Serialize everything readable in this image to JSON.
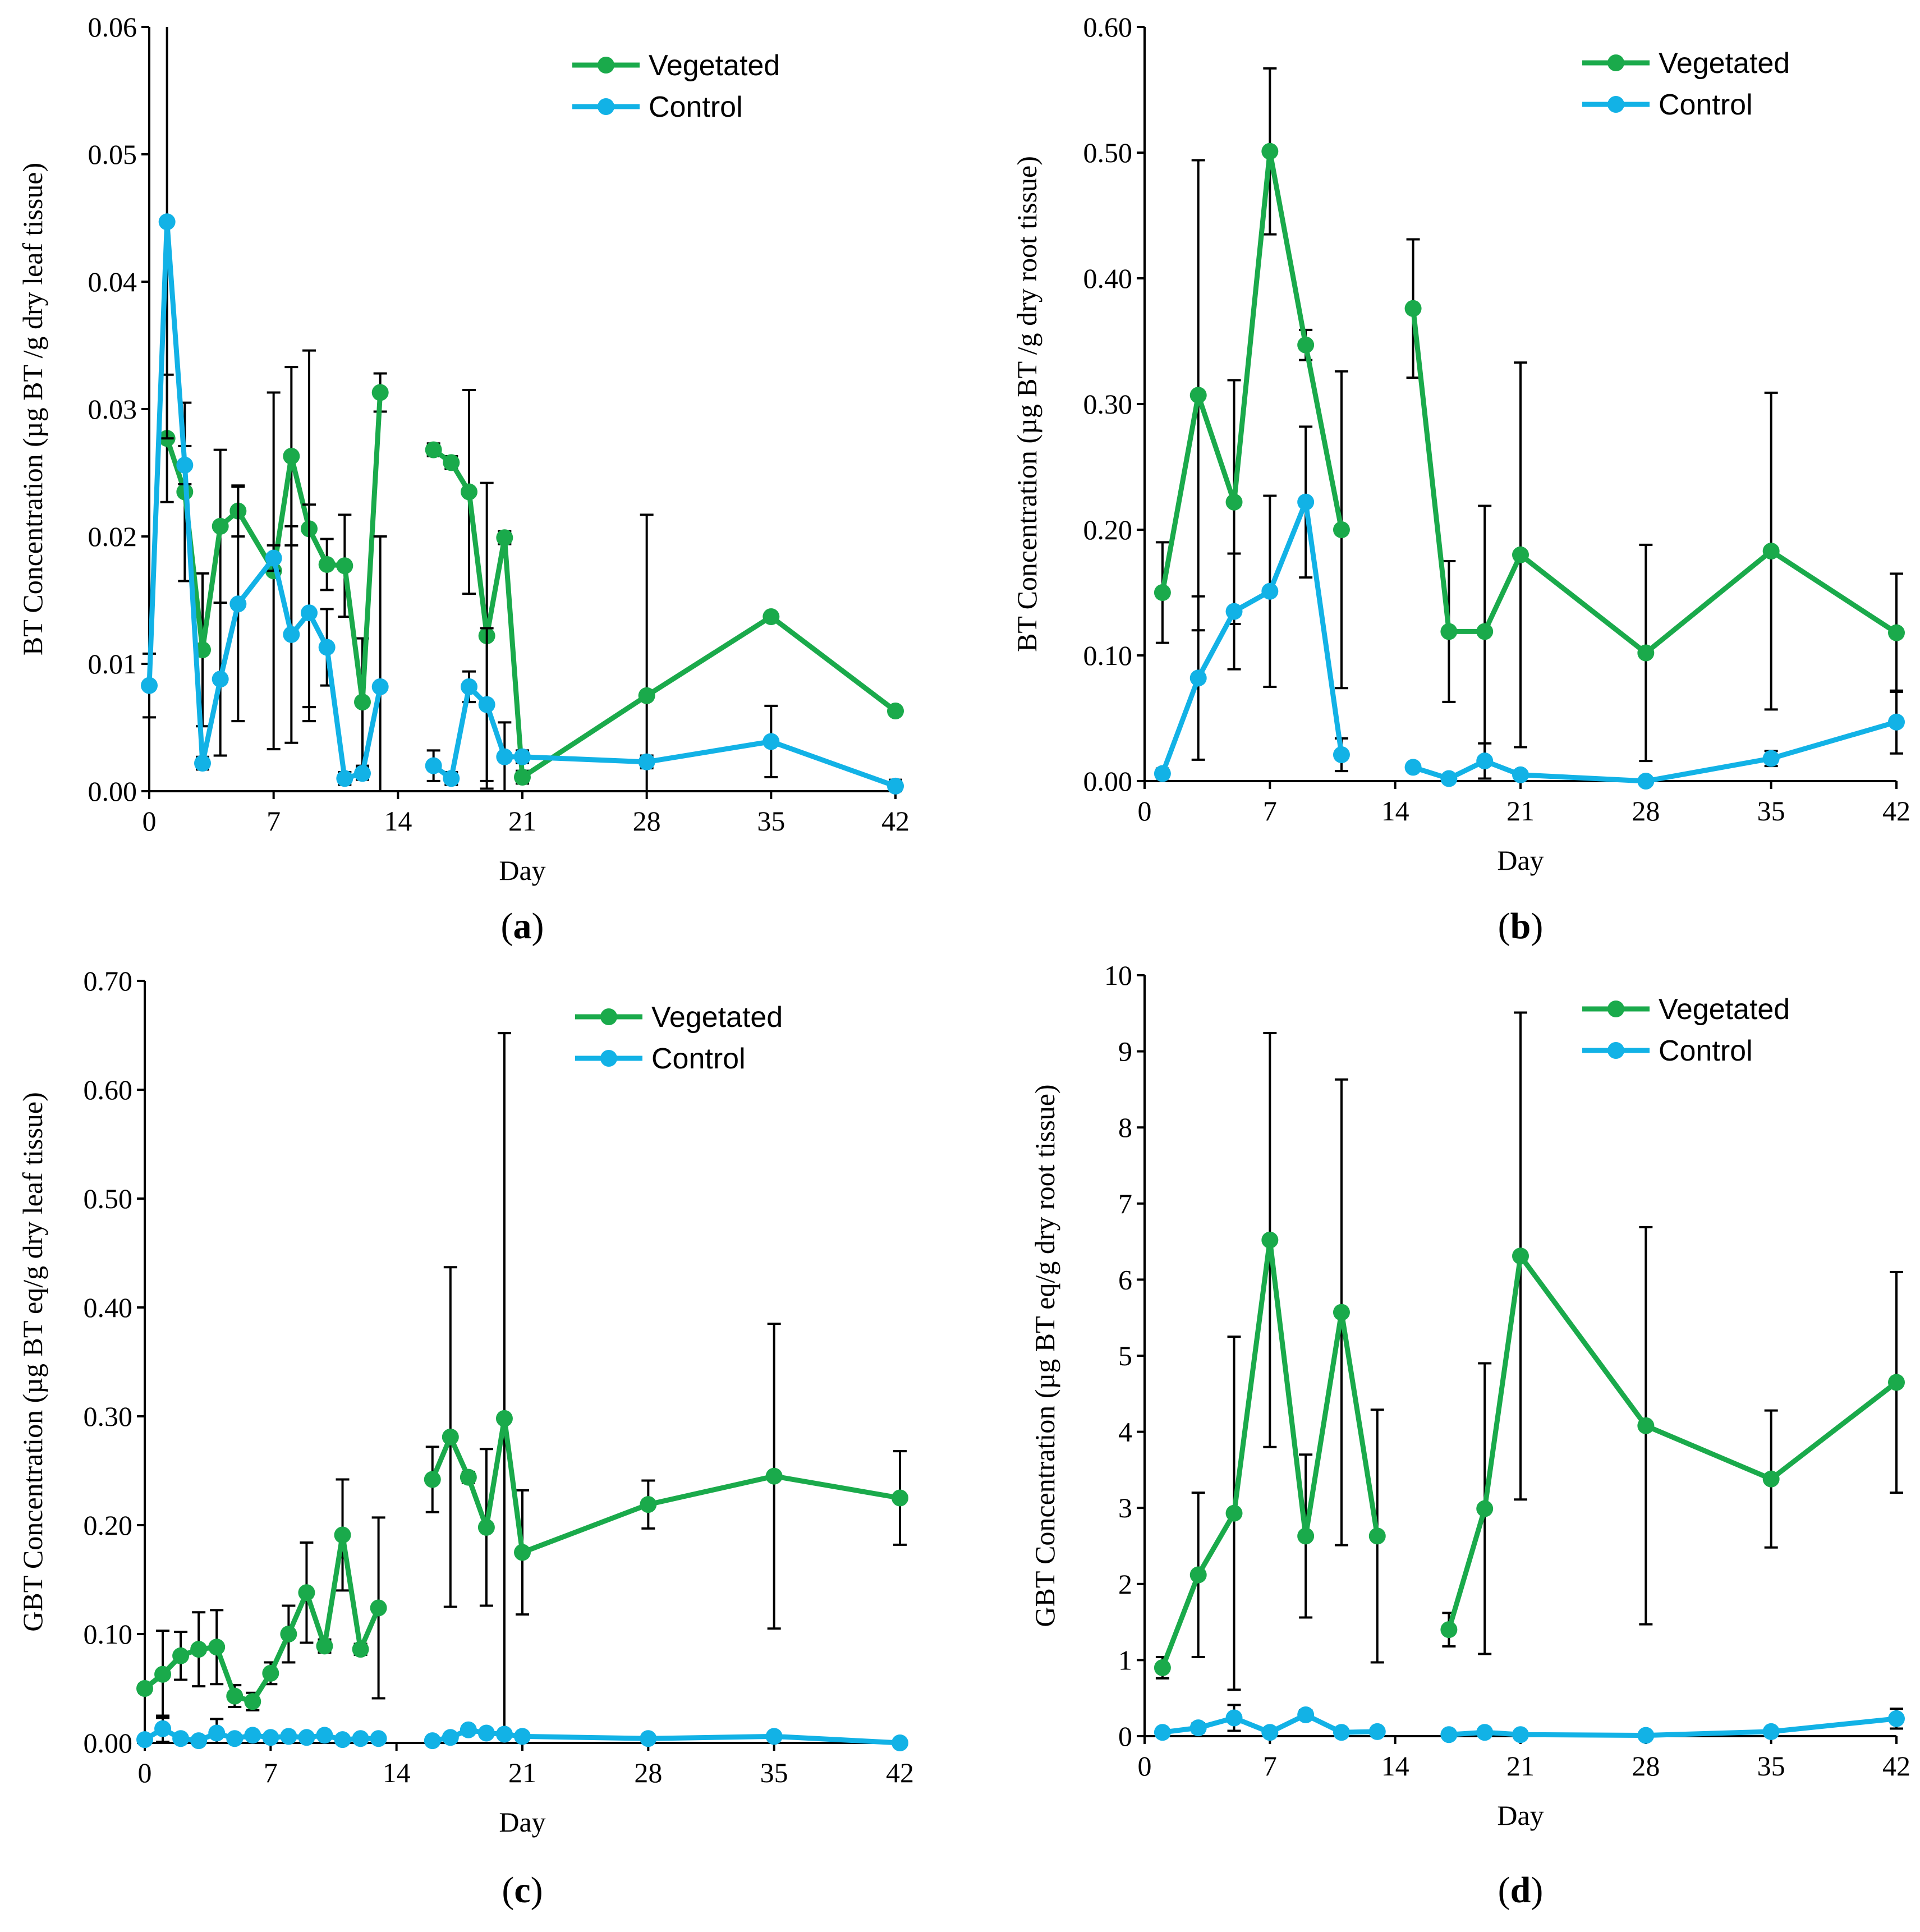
{
  "colors": {
    "vegetated": "#1aaa4b",
    "control": "#12b2e6",
    "axis": "#000000"
  },
  "chart_data": [
    {
      "id": "a",
      "type": "line",
      "panel_label": "a",
      "xlabel": "Day",
      "ylabel": "BT Concentration (µg BT /g dry leaf tissue)",
      "xlim": [
        0,
        42
      ],
      "ylim": [
        0,
        0.06
      ],
      "xticks": [
        0,
        7,
        14,
        21,
        28,
        35,
        42
      ],
      "xtick_labels": [
        "0",
        "7",
        "14",
        "21",
        "28",
        "35",
        "42"
      ],
      "yticks": [
        0,
        0.01,
        0.02,
        0.03,
        0.04,
        0.05,
        0.06
      ],
      "ytick_labels": [
        "0.00",
        "0.01",
        "0.02",
        "0.03",
        "0.04",
        "0.05",
        "0.06"
      ],
      "legend": [
        "Vegetated",
        "Control"
      ],
      "legend_position": "top-right",
      "series": [
        {
          "name": "Vegetated",
          "segments": [
            [
              [
                1,
                0.0277,
                0.005
              ],
              [
                2,
                0.0235,
                0.007
              ],
              [
                3,
                0.0111,
                0.006
              ],
              [
                4,
                0.0208,
                0.006
              ],
              [
                5,
                0.022,
                0.002
              ],
              [
                7,
                0.0173,
                0.014
              ],
              [
                8,
                0.0263,
                0.007
              ],
              [
                9,
                0.0206,
                0.014
              ],
              [
                10,
                0.0178,
                0.002
              ],
              [
                11,
                0.0177,
                0.004
              ],
              [
                12,
                0.007,
                0.005
              ],
              [
                13,
                0.0313,
                0.0015
              ]
            ],
            [
              [
                16,
                0.0268,
                0.0005
              ],
              [
                17,
                0.0258,
                0.0005
              ],
              [
                18,
                0.0235,
                0.008
              ],
              [
                19,
                0.0122,
                0.012
              ],
              [
                20,
                0.0199,
                0.0005
              ],
              [
                21,
                0.0011,
                0.0005
              ],
              [
                28,
                0.0075,
                0.0142
              ],
              [
                35,
                0.0137,
                0.0003
              ],
              [
                42,
                0.0063,
                0.0003
              ]
            ]
          ]
        },
        {
          "name": "Control",
          "segments": [
            [
              [
                0,
                0.0083,
                0.0025
              ],
              [
                1,
                0.0447,
                0.017
              ],
              [
                2,
                0.0256,
                0.0015
              ],
              [
                3,
                0.0022,
                0.0005
              ],
              [
                4,
                0.0088,
                0.006
              ],
              [
                5,
                0.0147,
                0.0092
              ],
              [
                7,
                0.0183,
                0.001
              ],
              [
                8,
                0.0123,
                0.0085
              ],
              [
                9,
                0.014,
                0.0085
              ],
              [
                10,
                0.0113,
                0.003
              ],
              [
                11,
                0.001,
                0.0005
              ],
              [
                12,
                0.0014,
                0.0005
              ],
              [
                13,
                0.0082,
                0.0118
              ]
            ],
            [
              [
                16,
                0.002,
                0.0012
              ],
              [
                17,
                0.001,
                0.0005
              ],
              [
                18,
                0.0082,
                0.0012
              ],
              [
                19,
                0.0068,
                0.006
              ],
              [
                20,
                0.0027,
                0.0027
              ],
              [
                21,
                0.0027,
                0.0005
              ],
              [
                28,
                0.0023,
                0.0005
              ],
              [
                35,
                0.0039,
                0.0028
              ],
              [
                42,
                0.0004,
                0.0005
              ]
            ]
          ]
        }
      ]
    },
    {
      "id": "b",
      "type": "line",
      "panel_label": "b",
      "xlabel": "Day",
      "ylabel": "BT Concentration (µg BT /g dry root tissue)",
      "xlim": [
        0,
        42
      ],
      "ylim": [
        0,
        0.6
      ],
      "xticks": [
        0,
        7,
        14,
        21,
        28,
        35,
        42
      ],
      "xtick_labels": [
        "0",
        "7",
        "14",
        "21",
        "28",
        "35",
        "42"
      ],
      "yticks": [
        0,
        0.1,
        0.2,
        0.3,
        0.4,
        0.5,
        0.6
      ],
      "ytick_labels": [
        "0.00",
        "0.10",
        "0.20",
        "0.30",
        "0.40",
        "0.50",
        "0.60"
      ],
      "legend": [
        "Vegetated",
        "Control"
      ],
      "legend_position": "top-right",
      "series": [
        {
          "name": "Vegetated",
          "segments": [
            [
              [
                1,
                0.15,
                0.04
              ],
              [
                3,
                0.307,
                0.187
              ],
              [
                5,
                0.222,
                0.097
              ],
              [
                7,
                0.501,
                0.066
              ],
              [
                9,
                0.347,
                0.012
              ],
              [
                11,
                0.2,
                0.126
              ]
            ],
            [
              [
                15,
                0.376,
                0.055
              ],
              [
                17,
                0.119,
                0.056
              ],
              [
                19,
                0.119,
                0.1
              ],
              [
                21,
                0.18,
                0.153
              ],
              [
                28,
                0.102,
                0.086
              ],
              [
                35,
                0.183,
                0.126
              ],
              [
                42,
                0.118,
                0.047
              ]
            ]
          ]
        },
        {
          "name": "Control",
          "segments": [
            [
              [
                1,
                0.006,
                0.004
              ],
              [
                3,
                0.082,
                0.065
              ],
              [
                5,
                0.135,
                0.046
              ],
              [
                7,
                0.151,
                0.076
              ],
              [
                9,
                0.222,
                0.06
              ],
              [
                11,
                0.021,
                0.013
              ]
            ],
            [
              [
                15,
                0.011,
                0.003
              ],
              [
                17,
                0.002,
                0.002
              ],
              [
                19,
                0.016,
                0.014
              ],
              [
                21,
                0.005,
                0.003
              ],
              [
                28,
                0.0,
                0.002
              ],
              [
                35,
                0.018,
                0.006
              ],
              [
                42,
                0.047,
                0.025
              ]
            ]
          ]
        }
      ]
    },
    {
      "id": "c",
      "type": "line",
      "panel_label": "c",
      "xlabel": "Day",
      "ylabel": "GBT Concentration (µg BT eq/g dry leaf tissue)",
      "xlim": [
        0,
        42
      ],
      "ylim": [
        0,
        0.7
      ],
      "xticks": [
        0,
        7,
        14,
        21,
        28,
        35,
        42
      ],
      "xtick_labels": [
        "0",
        "7",
        "14",
        "21",
        "28",
        "35",
        "42"
      ],
      "yticks": [
        0,
        0.1,
        0.2,
        0.3,
        0.4,
        0.5,
        0.6,
        0.7
      ],
      "ytick_labels": [
        "0.00",
        "0.10",
        "0.20",
        "0.30",
        "0.40",
        "0.50",
        "0.60",
        "0.70"
      ],
      "legend": [
        "Vegetated",
        "Control"
      ],
      "legend_position": "top-right",
      "series": [
        {
          "name": "Vegetated",
          "segments": [
            [
              [
                0,
                0.05,
                0.004
              ],
              [
                1,
                0.063,
                0.04
              ],
              [
                2,
                0.08,
                0.022
              ],
              [
                3,
                0.086,
                0.034
              ],
              [
                4,
                0.088,
                0.034
              ],
              [
                5,
                0.043,
                0.01
              ],
              [
                6,
                0.038,
                0.008
              ],
              [
                7,
                0.064,
                0.01
              ],
              [
                8,
                0.1,
                0.026
              ],
              [
                9,
                0.138,
                0.046
              ],
              [
                10,
                0.089,
                0.006
              ],
              [
                11,
                0.191,
                0.051
              ],
              [
                12,
                0.086,
                0.005
              ],
              [
                13,
                0.124,
                0.083
              ]
            ],
            [
              [
                16,
                0.242,
                0.03
              ],
              [
                17,
                0.281,
                0.156
              ],
              [
                18,
                0.244,
                0.005
              ],
              [
                19,
                0.198,
                0.072
              ],
              [
                20,
                0.298,
                0.354
              ],
              [
                21,
                0.175,
                0.057
              ],
              [
                28,
                0.219,
                0.022
              ],
              [
                35,
                0.245,
                0.14
              ],
              [
                42,
                0.225,
                0.043
              ]
            ]
          ]
        },
        {
          "name": "Control",
          "segments": [
            [
              [
                0,
                0.003,
                0.002
              ],
              [
                1,
                0.013,
                0.012
              ],
              [
                2,
                0.004,
                0.002
              ],
              [
                3,
                0.002,
                0.001
              ],
              [
                4,
                0.009,
                0.013
              ],
              [
                5,
                0.004,
                0.002
              ],
              [
                6,
                0.007,
                0.003
              ],
              [
                7,
                0.005,
                0.003
              ],
              [
                8,
                0.006,
                0.003
              ],
              [
                9,
                0.005,
                0.002
              ],
              [
                10,
                0.007,
                0.003
              ],
              [
                11,
                0.003,
                0.002
              ],
              [
                12,
                0.004,
                0.002
              ],
              [
                13,
                0.004,
                0.002
              ]
            ],
            [
              [
                16,
                0.002,
                0.002
              ],
              [
                17,
                0.005,
                0.003
              ],
              [
                18,
                0.012,
                0.003
              ],
              [
                19,
                0.009,
                0.003
              ],
              [
                20,
                0.008,
                0.003
              ],
              [
                21,
                0.006,
                0.003
              ],
              [
                28,
                0.004,
                0.002
              ],
              [
                35,
                0.006,
                0.003
              ],
              [
                42,
                0.0,
                0.002
              ]
            ]
          ]
        }
      ]
    },
    {
      "id": "d",
      "type": "line",
      "panel_label": "d",
      "xlabel": "Day",
      "ylabel": "GBT Concentration (µg BT eq/g dry root tissue)",
      "xlim": [
        0,
        42
      ],
      "ylim": [
        0,
        10
      ],
      "xticks": [
        0,
        7,
        14,
        21,
        28,
        35,
        42
      ],
      "xtick_labels": [
        "0",
        "7",
        "14",
        "21",
        "28",
        "35",
        "42"
      ],
      "yticks": [
        0,
        1,
        2,
        3,
        4,
        5,
        6,
        7,
        8,
        9,
        10
      ],
      "ytick_labels": [
        "0",
        "1",
        "2",
        "3",
        "4",
        "5",
        "6",
        "7",
        "8",
        "9",
        "10"
      ],
      "legend": [
        "Vegetated",
        "Control"
      ],
      "legend_position": "top-right",
      "series": [
        {
          "name": "Vegetated",
          "segments": [
            [
              [
                1,
                0.9,
                0.14
              ],
              [
                3,
                2.12,
                1.08
              ],
              [
                5,
                2.93,
                2.32
              ],
              [
                7,
                6.52,
                2.72
              ],
              [
                9,
                2.63,
                1.07
              ],
              [
                11,
                5.57,
                3.06
              ],
              [
                13,
                2.63,
                1.66
              ]
            ],
            [
              [
                17,
                1.4,
                0.22
              ],
              [
                19,
                2.99,
                1.91
              ],
              [
                21,
                6.31,
                3.2
              ],
              [
                28,
                4.08,
                2.61
              ],
              [
                35,
                3.38,
                0.9
              ],
              [
                42,
                4.65,
                1.45
              ]
            ]
          ]
        },
        {
          "name": "Control",
          "segments": [
            [
              [
                1,
                0.05,
                0.04
              ],
              [
                3,
                0.11,
                0.06
              ],
              [
                5,
                0.24,
                0.17
              ],
              [
                7,
                0.05,
                0.03
              ],
              [
                9,
                0.28,
                0.06
              ],
              [
                11,
                0.05,
                0.03
              ],
              [
                13,
                0.06,
                0.03
              ]
            ],
            [
              [
                17,
                0.02,
                0.02
              ],
              [
                19,
                0.05,
                0.03
              ],
              [
                21,
                0.02,
                0.02
              ],
              [
                28,
                0.01,
                0.02
              ],
              [
                35,
                0.06,
                0.04
              ],
              [
                42,
                0.23,
                0.13
              ]
            ]
          ]
        }
      ]
    }
  ]
}
